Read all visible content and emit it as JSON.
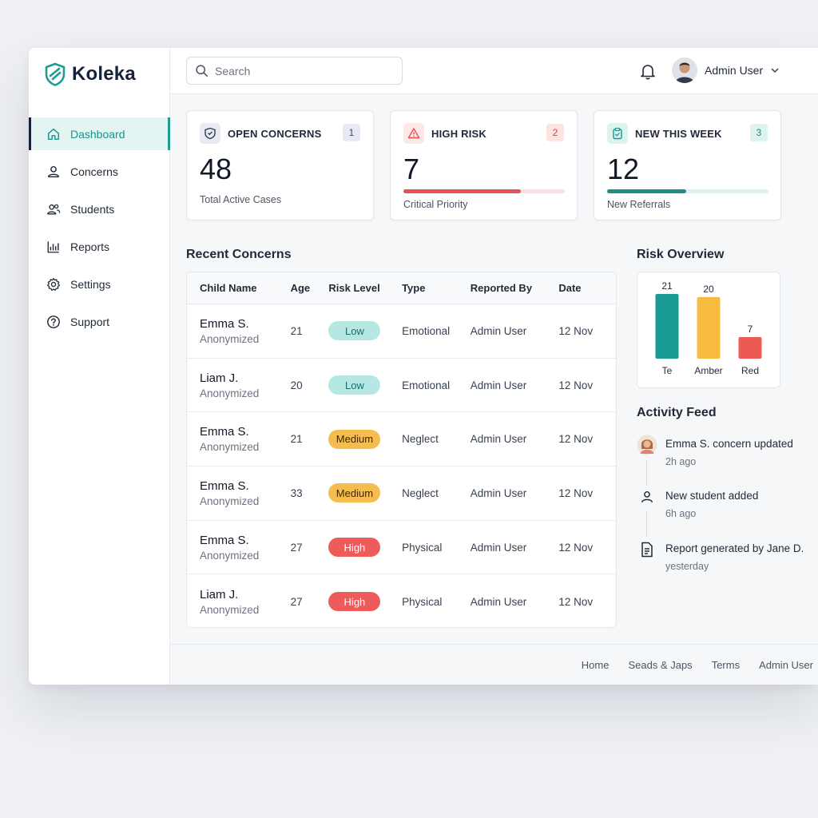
{
  "app": {
    "name": "Koleka"
  },
  "search": {
    "placeholder": "Search"
  },
  "user": {
    "name": "Admin User"
  },
  "sidebar": {
    "items": [
      {
        "label": "Dashboard",
        "icon": "home-icon",
        "active": true
      },
      {
        "label": "Concerns",
        "icon": "person-icon"
      },
      {
        "label": "Students",
        "icon": "people-icon"
      },
      {
        "label": "Reports",
        "icon": "bar-chart-icon"
      },
      {
        "label": "Settings",
        "icon": "gear-icon"
      },
      {
        "label": "Support",
        "icon": "help-icon"
      }
    ]
  },
  "stats": [
    {
      "title": "OPEN CONCERNS",
      "badge": "1",
      "value": "48",
      "sub": "Total Active Cases",
      "icon": "shield-icon",
      "accent": "#4b5b7a"
    },
    {
      "title": "HIGH RISK",
      "badge": "2",
      "value": "7",
      "sub": "Critical Priority",
      "icon": "warning-icon",
      "accent": "#e05454",
      "progress": 0.73
    },
    {
      "title": "NEW THIS WEEK",
      "badge": "3",
      "value": "12",
      "sub": "New Referrals",
      "icon": "clipboard-icon",
      "accent": "#1a9a8e",
      "progress": 0.49
    }
  ],
  "recent": {
    "title": "Recent Concerns",
    "columns": [
      "Child Name",
      "Age",
      "Risk Level",
      "Type",
      "Reported By",
      "Date"
    ],
    "rows": [
      {
        "name": "Emma S.",
        "sub": "Anonymized",
        "age": "21",
        "risk": "Low",
        "type": "Emotional",
        "reporter": "Admin User",
        "date": "12 Nov"
      },
      {
        "name": "Liam J.",
        "sub": "Anonymized",
        "age": "20",
        "risk": "Low",
        "type": "Emotional",
        "reporter": "Admin User",
        "date": "12 Nov"
      },
      {
        "name": "Emma S.",
        "sub": "Anonymized",
        "age": "21",
        "risk": "Medium",
        "type": "Neglect",
        "reporter": "Admin User",
        "date": "12 Nov"
      },
      {
        "name": "Emma S.",
        "sub": "Anonymized",
        "age": "33",
        "risk": "Medium",
        "type": "Neglect",
        "reporter": "Admin User",
        "date": "12 Nov"
      },
      {
        "name": "Emma S.",
        "sub": "Anonymized",
        "age": "27",
        "risk": "High",
        "type": "Physical",
        "reporter": "Admin User",
        "date": "12 Nov"
      },
      {
        "name": "Liam J.",
        "sub": "Anonymized",
        "age": "27",
        "risk": "High",
        "type": "Physical",
        "reporter": "Admin User",
        "date": "12 Nov"
      }
    ]
  },
  "risk_colors": {
    "Low": {
      "bg": "#b6e8e3",
      "fg": "#1b6e67"
    },
    "Medium": {
      "bg": "#f5bd4f",
      "fg": "#3b2a05"
    },
    "High": {
      "bg": "#ee5b5b",
      "fg": "#ffffff"
    }
  },
  "risk_overview": {
    "title": "Risk Overview"
  },
  "chart_data": {
    "type": "bar",
    "categories": [
      "Te",
      "Amber",
      "Red"
    ],
    "values": [
      21,
      20,
      7
    ],
    "colors": [
      "#1a9a95",
      "#f6bb40",
      "#ec5a56"
    ],
    "title": "Risk Overview",
    "ylim": [
      0,
      21
    ]
  },
  "activity": {
    "title": "Activity Feed",
    "items": [
      {
        "text": "Emma S. concern updated",
        "time": "2h ago",
        "icon": "avatar-icon"
      },
      {
        "text": "New student added",
        "time": "6h ago",
        "icon": "person-icon"
      },
      {
        "text": "Report generated by Jane D.",
        "time": "yesterday",
        "icon": "document-icon"
      }
    ]
  },
  "footer": {
    "links": [
      "Home",
      "Seads & Japs",
      "Terms",
      "Admin User"
    ]
  }
}
